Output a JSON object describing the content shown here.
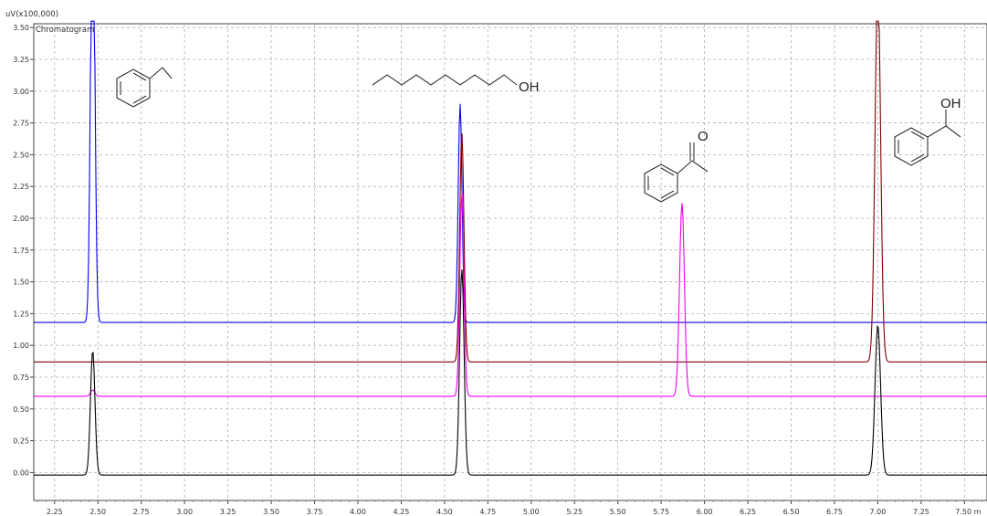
{
  "chart_data": {
    "type": "line",
    "title": "Chromatogram",
    "ylabel": "uV(x100,000)",
    "xlabel": "min",
    "xlim": [
      2.13,
      7.63
    ],
    "ylim": [
      -0.22,
      3.53
    ],
    "x_ticks": [
      "2.25",
      "2.50",
      "2.75",
      "3.00",
      "3.25",
      "3.50",
      "3.75",
      "4.00",
      "4.25",
      "4.50",
      "4.75",
      "5.00",
      "5.25",
      "5.50",
      "5.75",
      "6.00",
      "6.25",
      "6.50",
      "6.75",
      "7.00",
      "7.25",
      "7.50"
    ],
    "y_ticks": [
      "0.00",
      "0.25",
      "0.50",
      "0.75",
      "1.00",
      "1.25",
      "1.50",
      "1.75",
      "2.00",
      "2.25",
      "2.50",
      "2.75",
      "3.00",
      "3.25",
      "3.50"
    ],
    "last_x_tick_label": "7.50 m",
    "grid": true,
    "series": [
      {
        "color": "#0000ee",
        "baseline": 1.18,
        "peaks": [
          {
            "x": 2.47,
            "h": 3.6,
            "w": 0.012
          },
          {
            "x": 4.59,
            "h": 1.72,
            "w": 0.011
          }
        ]
      },
      {
        "color": "#800000",
        "baseline": 0.87,
        "peaks": [
          {
            "x": 4.6,
            "h": 1.8,
            "w": 0.012
          },
          {
            "x": 7.0,
            "h": 3.0,
            "w": 0.016
          }
        ]
      },
      {
        "color": "#ee00ee",
        "baseline": 0.6,
        "peaks": [
          {
            "x": 2.47,
            "h": 0.05,
            "w": 0.012
          },
          {
            "x": 4.6,
            "h": 1.6,
            "w": 0.012
          },
          {
            "x": 5.87,
            "h": 1.52,
            "w": 0.014
          }
        ]
      },
      {
        "color": "#000000",
        "baseline": -0.02,
        "peaks": [
          {
            "x": 2.47,
            "h": 0.98,
            "w": 0.013
          },
          {
            "x": 4.6,
            "h": 1.62,
            "w": 0.013
          },
          {
            "x": 7.0,
            "h": 1.18,
            "w": 0.016
          }
        ]
      }
    ]
  },
  "annotations": {
    "octanol_oh": "OH",
    "acetophenone_o": "O",
    "phenylethanol_oh": "OH"
  }
}
